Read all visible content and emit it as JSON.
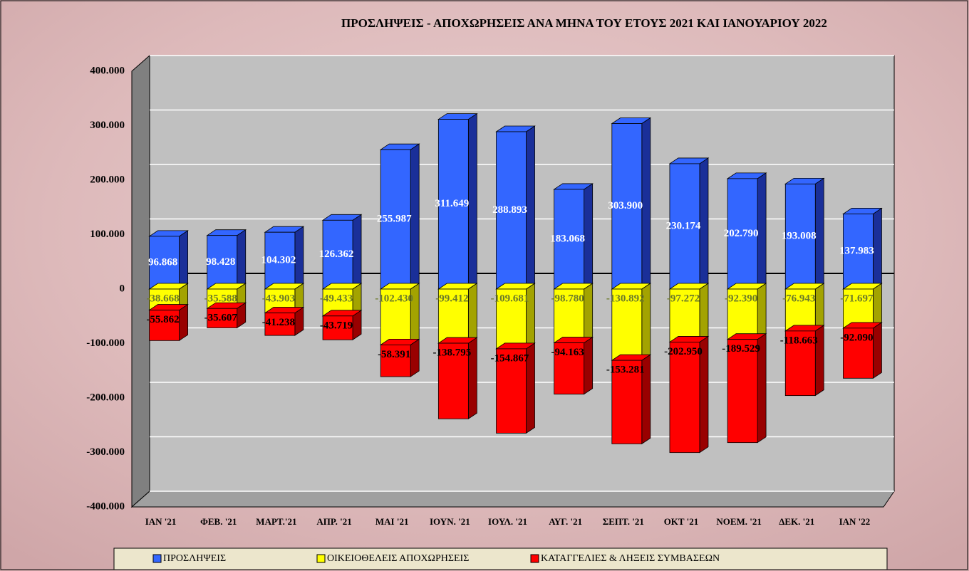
{
  "chart_data": {
    "type": "stacked-bar-3d",
    "title": "ΠΡΟΣΛΗΨΕΙΣ - ΑΠΟΧΩΡΗΣΕΙΣ  ΑΝΑ ΜΗΝΑ ΤΟΥ  ΕΤΟΥΣ 2021 ΚΑΙ ΙΑΝΟΥΑΡΙΟΥ 2022",
    "categories": [
      "ΙΑΝ  '21",
      "ΦΕΒ. '21",
      "ΜΑΡΤ.'21",
      "ΑΠΡ. '21",
      "ΜΑΙ  '21",
      "ΙΟΥΝ. '21",
      "ΙΟΥΛ. '21",
      "ΑΥΓ. '21",
      "ΣΕΠΤ. '21",
      "ΟΚΤ '21",
      "ΝΟΕΜ. '21",
      "ΔΕΚ. '21",
      "ΙΑΝ  '22"
    ],
    "series": [
      {
        "name": "ΠΡΟΣΛΗΨΕΙΣ",
        "color": "#3366ff",
        "side": "#1a2f99",
        "label_color": "#ffffff",
        "values": [
          96868,
          98428,
          104302,
          126362,
          255987,
          311649,
          288893,
          183068,
          303900,
          230174,
          202790,
          193008,
          137983
        ],
        "value_labels": [
          "96.868",
          "98.428",
          "104.302",
          "126.362",
          "255.987",
          "311.649",
          "288.893",
          "183.068",
          "303.900",
          "230.174",
          "202.790",
          "193.008",
          "137.983"
        ]
      },
      {
        "name": "ΟΙΚΕΙΟΘΕΛΕΙΣ ΑΠΟΧΩΡΗΣΕΙΣ",
        "color": "#ffff00",
        "side": "#a3a300",
        "label_color": "#6b7a2a",
        "values": [
          -38668,
          -35588,
          -43903,
          -49433,
          -102430,
          -99412,
          -109681,
          -98780,
          -130892,
          -97272,
          -92390,
          -76943,
          -71697
        ],
        "value_labels": [
          "-38.668",
          "-35.588",
          "-43.903",
          "-49.433",
          "-102.430",
          "-99.412",
          "-109.681",
          "-98.780",
          "-130.892",
          "-97.272",
          "-92.390",
          "-76.943",
          "-71.697"
        ]
      },
      {
        "name": "ΚΑΤΑΓΓΕΛΙΕΣ & ΛΗΞΕΙΣ ΣΥΜΒΑΣΕΩΝ",
        "color": "#ff0000",
        "side": "#990000",
        "label_color": "#000000",
        "values": [
          -55862,
          -35607,
          -41238,
          -43719,
          -58391,
          -138795,
          -154867,
          -94163,
          -153281,
          -202950,
          -189529,
          -118663,
          -92090
        ],
        "value_labels": [
          "-55.862",
          "-35.607",
          "-41.238",
          "-43.719",
          "-58.391",
          "-138.795",
          "-154.867",
          "-94.163",
          "-153.281",
          "-202.950",
          "-189.529",
          "-118.663",
          "-92.090"
        ]
      }
    ],
    "ylim": [
      -400000,
      400000
    ],
    "yticks": [
      {
        "value": -400000,
        "label": "-400.000"
      },
      {
        "value": -300000,
        "label": "-300.000"
      },
      {
        "value": -200000,
        "label": "-200.000"
      },
      {
        "value": -100000,
        "label": "-100.000"
      },
      0,
      {
        "value": 100000,
        "label": "100.000"
      },
      {
        "value": 200000,
        "label": "200.000"
      },
      {
        "value": 300000,
        "label": "300.000"
      },
      {
        "value": 400000,
        "label": "400.000"
      }
    ],
    "grid": true
  }
}
